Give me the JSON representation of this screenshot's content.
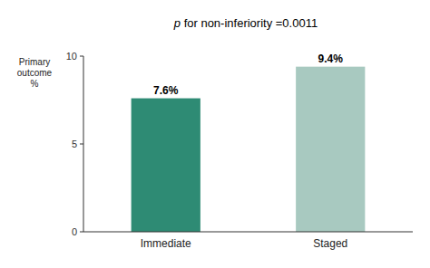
{
  "chart_data": {
    "type": "bar",
    "annotation": "p for non-inferiority =0.0011",
    "ylabel": "Primary\noutcome\n%",
    "categories": [
      "Immediate",
      "Staged"
    ],
    "values": [
      7.6,
      9.4
    ],
    "value_labels": [
      "7.6%",
      "9.4%"
    ],
    "colors": [
      "#2e8b74",
      "#a8c9c0"
    ],
    "ylim": [
      0,
      10
    ],
    "yticks": [
      0,
      5,
      10
    ],
    "data_labels": true,
    "grid": false
  }
}
